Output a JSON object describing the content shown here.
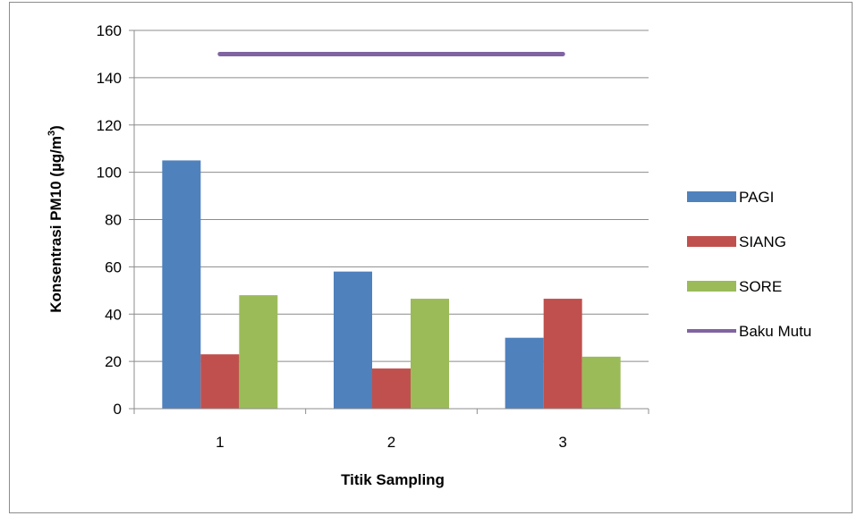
{
  "chart_data": {
    "type": "bar",
    "categories": [
      "1",
      "2",
      "3"
    ],
    "series": [
      {
        "name": "PAGI",
        "type": "bar",
        "color": "#4f81bd",
        "values": [
          105,
          58,
          30
        ]
      },
      {
        "name": "SIANG",
        "type": "bar",
        "color": "#c0504d",
        "values": [
          23,
          17,
          46.5
        ]
      },
      {
        "name": "SORE",
        "type": "bar",
        "color": "#9bbb59",
        "values": [
          48,
          46.5,
          22
        ]
      },
      {
        "name": "Baku Mutu",
        "type": "line",
        "color": "#8064a2",
        "values": [
          150,
          150,
          150
        ]
      }
    ],
    "xlabel": "Titik Sampling",
    "ylabel": "Konsentrasi PM10 (µg/m³)",
    "ylabel_main": "Konsentrasi PM10  (µg/m",
    "ylabel_sup": "3",
    "ylabel_close": ")",
    "ylim": [
      0,
      160
    ],
    "yticks": [
      0,
      20,
      40,
      60,
      80,
      100,
      120,
      140,
      160
    ],
    "grid": true,
    "legend": "right"
  }
}
